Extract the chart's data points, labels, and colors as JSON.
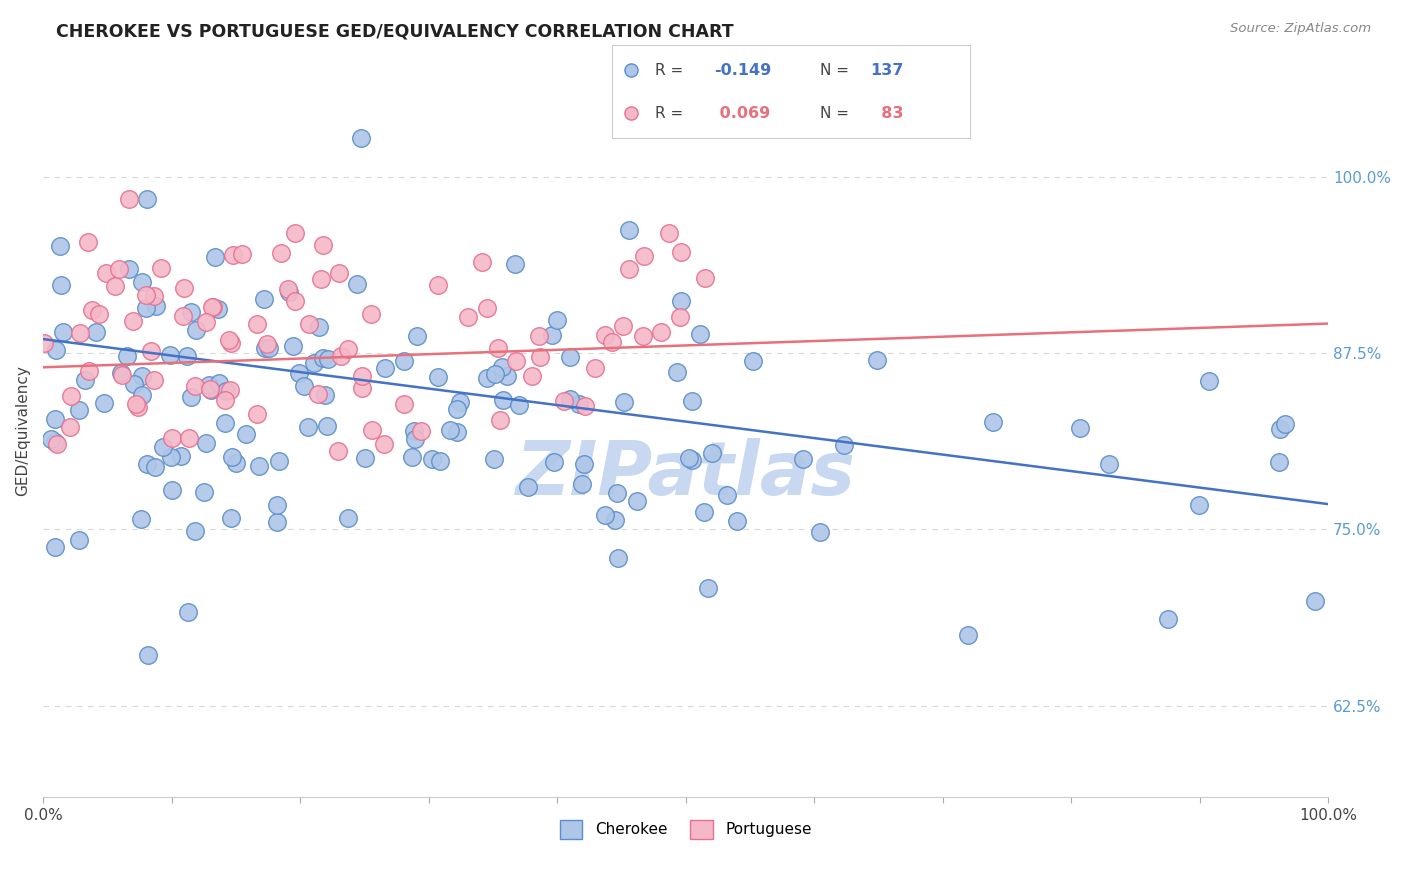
{
  "title": "CHEROKEE VS PORTUGUESE GED/EQUIVALENCY CORRELATION CHART",
  "source": "Source: ZipAtlas.com",
  "ylabel": "GED/Equivalency",
  "legend_cherokee_R": "-0.149",
  "legend_cherokee_N": "137",
  "legend_portuguese_R": "0.069",
  "legend_portuguese_N": "83",
  "cherokee_color": "#aec6e8",
  "portuguese_color": "#f5b8c8",
  "cherokee_edge_color": "#5b8ecb",
  "portuguese_edge_color": "#e87090",
  "cherokee_line_color": "#4472c4",
  "portuguese_line_color": "#e8707a",
  "xmin": 0.0,
  "xmax": 1.0,
  "ymin": 0.56,
  "ymax": 1.08,
  "y_ticks": [
    0.625,
    0.75,
    0.875,
    1.0
  ],
  "y_tick_labels": [
    "62.5%",
    "75.0%",
    "87.5%",
    "100.0%"
  ],
  "watermark": "ZIPatlas",
  "watermark_color": "#c8d8f0",
  "background_color": "#ffffff",
  "grid_color": "#d8d8d8",
  "right_tick_color": "#5b9bd5"
}
